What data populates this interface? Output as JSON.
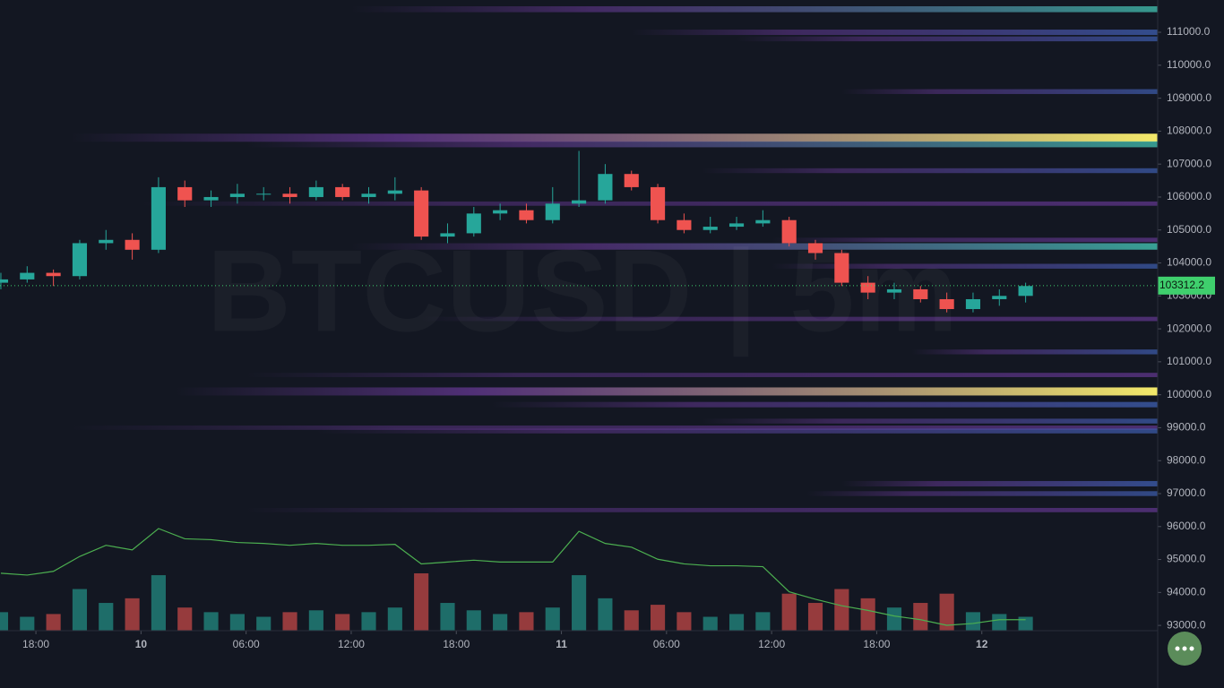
{
  "chart_data": {
    "type": "candlestick",
    "watermark": "BTCUSD | 5m",
    "x": [
      16,
      17.5,
      19,
      20.5,
      22,
      23.5,
      25,
      26.5,
      28,
      29.5,
      31,
      32.5,
      34,
      35.5,
      37,
      38.5,
      40,
      41.5,
      43,
      44.5,
      46,
      47.5,
      49,
      50.5,
      52,
      53.5,
      55,
      56.5,
      58,
      59.5,
      61,
      62.5,
      64,
      65.5,
      67,
      68.5,
      70,
      71.5,
      73,
      74.5
    ],
    "ohlc": [
      [
        103400,
        103700,
        103200,
        103500
      ],
      [
        103500,
        103900,
        103400,
        103700
      ],
      [
        103700,
        103800,
        103300,
        103600
      ],
      [
        103600,
        104700,
        103500,
        104600
      ],
      [
        104600,
        105000,
        104400,
        104700
      ],
      [
        104700,
        104900,
        104100,
        104400
      ],
      [
        104400,
        106600,
        104300,
        106300
      ],
      [
        106300,
        106500,
        105700,
        105900
      ],
      [
        105900,
        106200,
        105700,
        106000
      ],
      [
        106000,
        106400,
        105800,
        106100
      ],
      [
        106100,
        106300,
        105900,
        106100
      ],
      [
        106100,
        106300,
        105800,
        106000
      ],
      [
        106000,
        106500,
        105900,
        106300
      ],
      [
        106300,
        106400,
        105900,
        106000
      ],
      [
        106000,
        106300,
        105800,
        106100
      ],
      [
        106100,
        106600,
        105900,
        106200
      ],
      [
        106200,
        106300,
        104700,
        104800
      ],
      [
        104800,
        105200,
        104600,
        104900
      ],
      [
        104900,
        105700,
        104800,
        105500
      ],
      [
        105500,
        105800,
        105300,
        105600
      ],
      [
        105600,
        105800,
        105200,
        105300
      ],
      [
        105300,
        106300,
        105200,
        105800
      ],
      [
        105800,
        107400,
        105700,
        105900
      ],
      [
        105900,
        107000,
        105800,
        106700
      ],
      [
        106700,
        106800,
        106200,
        106300
      ],
      [
        106300,
        106400,
        105200,
        105300
      ],
      [
        105300,
        105500,
        104900,
        105000
      ],
      [
        105000,
        105400,
        104900,
        105100
      ],
      [
        105100,
        105400,
        105000,
        105200
      ],
      [
        105200,
        105600,
        105100,
        105300
      ],
      [
        105300,
        105400,
        104500,
        104600
      ],
      [
        104600,
        104700,
        104100,
        104300
      ],
      [
        104300,
        104400,
        103300,
        103400
      ],
      [
        103400,
        103600,
        102900,
        103100
      ],
      [
        103100,
        103400,
        102900,
        103200
      ],
      [
        103200,
        103300,
        102800,
        102900
      ],
      [
        102900,
        103100,
        102500,
        102600
      ],
      [
        102600,
        103100,
        102500,
        102900
      ],
      [
        102900,
        103200,
        102700,
        103000
      ],
      [
        103000,
        103400,
        102800,
        103300
      ]
    ],
    "volume": [
      20,
      15,
      18,
      45,
      30,
      35,
      60,
      25,
      20,
      18,
      15,
      20,
      22,
      18,
      20,
      25,
      62,
      30,
      22,
      18,
      20,
      25,
      60,
      35,
      22,
      28,
      20,
      15,
      18,
      20,
      40,
      30,
      45,
      35,
      25,
      30,
      40,
      20,
      18,
      15
    ],
    "delta": [
      60,
      58,
      62,
      78,
      90,
      85,
      108,
      97,
      96,
      93,
      92,
      90,
      92,
      90,
      90,
      91,
      70,
      72,
      74,
      72,
      72,
      72,
      105,
      92,
      88,
      75,
      70,
      68,
      68,
      67,
      40,
      32,
      25,
      20,
      14,
      10,
      4,
      6,
      10,
      10
    ],
    "up_color": "#26a69a",
    "down_color": "#ef5350",
    "delta_color": "#4caf50",
    "last_price": 103312.2,
    "last_price_color": "#3fcf6d",
    "heatmap": [
      {
        "price": 111700,
        "intensity": 0.6,
        "from": 36
      },
      {
        "price": 111000,
        "intensity": 0.5,
        "from": 52
      },
      {
        "price": 110800,
        "intensity": 0.4,
        "from": 58
      },
      {
        "price": 109200,
        "intensity": 0.4,
        "from": 64
      },
      {
        "price": 107800,
        "intensity": 1,
        "from": 20
      },
      {
        "price": 107600,
        "intensity": 0.6,
        "from": 30
      },
      {
        "price": 106800,
        "intensity": 0.4,
        "from": 56
      },
      {
        "price": 105800,
        "intensity": 0.3,
        "from": 24
      },
      {
        "price": 104700,
        "intensity": 0.3,
        "from": 60
      },
      {
        "price": 104500,
        "intensity": 0.7,
        "from": 36
      },
      {
        "price": 103900,
        "intensity": 0.4,
        "from": 60
      },
      {
        "price": 102300,
        "intensity": 0.3,
        "from": 40
      },
      {
        "price": 101300,
        "intensity": 0.4,
        "from": 68
      },
      {
        "price": 100600,
        "intensity": 0.3,
        "from": 30
      },
      {
        "price": 100100,
        "intensity": 1,
        "from": 26
      },
      {
        "price": 99700,
        "intensity": 0.5,
        "from": 44
      },
      {
        "price": 99200,
        "intensity": 0.4,
        "from": 56
      },
      {
        "price": 99000,
        "intensity": 0.3,
        "from": 20
      },
      {
        "price": 98900,
        "intensity": 0.4,
        "from": 34
      },
      {
        "price": 97300,
        "intensity": 0.5,
        "from": 64
      },
      {
        "price": 97000,
        "intensity": 0.4,
        "from": 62
      },
      {
        "price": 96500,
        "intensity": 0.3,
        "from": 30
      }
    ],
    "xlim": [
      15.95,
      82.04
    ],
    "ylim": [
      92840,
      111980
    ],
    "xticks": [
      {
        "value": 18,
        "label": "18:00"
      },
      {
        "value": 24,
        "label": "10"
      },
      {
        "value": 30,
        "label": "06:00"
      },
      {
        "value": 36,
        "label": "12:00"
      },
      {
        "value": 42,
        "label": "18:00"
      },
      {
        "value": 48,
        "label": "11"
      },
      {
        "value": 54,
        "label": "06:00"
      },
      {
        "value": 60,
        "label": "12:00"
      },
      {
        "value": 66,
        "label": "18:00"
      },
      {
        "value": 72,
        "label": "12"
      }
    ],
    "yticks": [
      {
        "value": 111000,
        "label": "111000.0"
      },
      {
        "value": 110000,
        "label": "110000.0"
      },
      {
        "value": 109000,
        "label": "109000.0"
      },
      {
        "value": 108000,
        "label": "108000.0"
      },
      {
        "value": 107000,
        "label": "107000.0"
      },
      {
        "value": 106000,
        "label": "106000.0"
      },
      {
        "value": 105000,
        "label": "105000.0"
      },
      {
        "value": 104000,
        "label": "104000.0"
      },
      {
        "value": 103000,
        "label": "103000.0"
      },
      {
        "value": 102000,
        "label": "102000.0"
      },
      {
        "value": 101000,
        "label": "101000.0"
      },
      {
        "value": 100000,
        "label": "100000.0"
      },
      {
        "value": 99000,
        "label": "99000.0"
      },
      {
        "value": 98000,
        "label": "98000.0"
      },
      {
        "value": 97000,
        "label": "97000.0"
      },
      {
        "value": 96000,
        "label": "96000.0"
      },
      {
        "value": 95000,
        "label": "95000.0"
      },
      {
        "value": 94000,
        "label": "94000.0"
      },
      {
        "value": 93000,
        "label": "93000.0"
      }
    ]
  }
}
